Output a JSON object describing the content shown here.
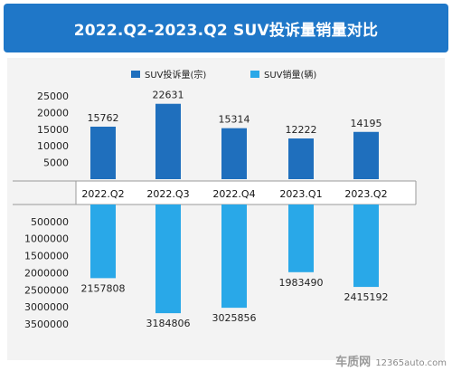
{
  "title": "2022.Q2-2023.Q2 SUV投诉量销量对比",
  "watermark": {
    "brand": "车质网",
    "site": "12365auto.com"
  },
  "colors": {
    "title_bg": "#1f77c8",
    "complaints": "#1f6fbd",
    "sales": "#29a8e8",
    "panel_bg": "#f3f3f3"
  },
  "chart_data": {
    "type": "bar",
    "categories": [
      "2022.Q2",
      "2022.Q3",
      "2022.Q4",
      "2023.Q1",
      "2023.Q2"
    ],
    "grid": false,
    "legend_position": "top",
    "series": [
      {
        "name": "SUV投诉量(宗)",
        "values": [
          15762,
          22631,
          15314,
          12222,
          14195
        ],
        "ylim": [
          0,
          25000
        ],
        "ticks": [
          "25000",
          "20000",
          "15000",
          "10000",
          "5000"
        ],
        "tick_values": [
          25000,
          20000,
          15000,
          10000,
          5000
        ],
        "direction": "up"
      },
      {
        "name": "SUV销量(辆)",
        "values": [
          2157808,
          3184806,
          3025856,
          1983490,
          2415192
        ],
        "ylim": [
          0,
          3500000
        ],
        "ticks": [
          "500000",
          "1000000",
          "1500000",
          "2000000",
          "2500000",
          "3000000",
          "3500000"
        ],
        "tick_values": [
          500000,
          1000000,
          1500000,
          2000000,
          2500000,
          3000000,
          3500000
        ],
        "direction": "down"
      }
    ]
  }
}
